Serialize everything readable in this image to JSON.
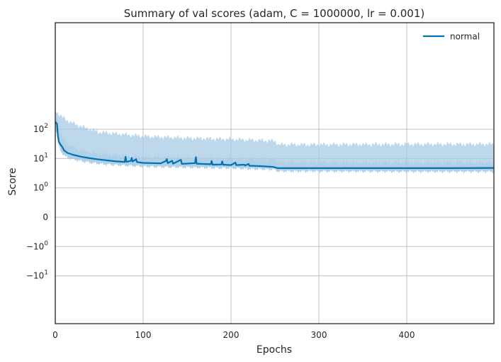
{
  "chart_data": {
    "type": "line",
    "title": "Summary of val scores (adam, C = 1000000, lr = 0.001)",
    "xlabel": "Epochs",
    "ylabel": "Score",
    "xlim": [
      0,
      500
    ],
    "y_scale": "symlog",
    "grid": true,
    "legend_position": "top-right",
    "x_ticks": [
      {
        "value": 0,
        "label": "0"
      },
      {
        "value": 100,
        "label": "100"
      },
      {
        "value": 200,
        "label": "200"
      },
      {
        "value": 300,
        "label": "300"
      },
      {
        "value": 400,
        "label": "400"
      }
    ],
    "y_ticks": [
      {
        "value": 100,
        "base": "10",
        "exp": "2"
      },
      {
        "value": 10,
        "base": "10",
        "exp": "1"
      },
      {
        "value": 1,
        "base": "10",
        "exp": "0"
      },
      {
        "value": 0,
        "base": "0",
        "exp": ""
      },
      {
        "value": -1,
        "base": "−10",
        "exp": "0"
      },
      {
        "value": -10,
        "base": "−10",
        "exp": "1"
      }
    ],
    "series": [
      {
        "name": "normal",
        "color": "#0072b2",
        "band_color": "#a6cbe3",
        "mean": [
          [
            0,
            180
          ],
          [
            2,
            150
          ],
          [
            3,
            60
          ],
          [
            4,
            38
          ],
          [
            6,
            30
          ],
          [
            8,
            25
          ],
          [
            10,
            19
          ],
          [
            14,
            15.5
          ],
          [
            20,
            13.5
          ],
          [
            30,
            11.5
          ],
          [
            40,
            10.2
          ],
          [
            50,
            9.3
          ],
          [
            60,
            8.6
          ],
          [
            70,
            8.0
          ],
          [
            79,
            7.7
          ],
          [
            80,
            11.5
          ],
          [
            81,
            7.8
          ],
          [
            86,
            8.3
          ],
          [
            87,
            10.5
          ],
          [
            88,
            7.9
          ],
          [
            92,
            9.5
          ],
          [
            93,
            7.6
          ],
          [
            100,
            7.1
          ],
          [
            110,
            7.0
          ],
          [
            120,
            6.9
          ],
          [
            126,
            8.3
          ],
          [
            127,
            9.6
          ],
          [
            128,
            7.0
          ],
          [
            133,
            8.4
          ],
          [
            134,
            6.7
          ],
          [
            143,
            9.1
          ],
          [
            144,
            6.6
          ],
          [
            159,
            7.0
          ],
          [
            160,
            11.2
          ],
          [
            161,
            6.7
          ],
          [
            177,
            6.4
          ],
          [
            178,
            8.3
          ],
          [
            179,
            6.2
          ],
          [
            189,
            6.3
          ],
          [
            190,
            8.0
          ],
          [
            191,
            6.2
          ],
          [
            200,
            6.0
          ],
          [
            205,
            7.3
          ],
          [
            206,
            6.0
          ],
          [
            215,
            6.2
          ],
          [
            216,
            5.8
          ],
          [
            220,
            6.6
          ],
          [
            221,
            5.7
          ],
          [
            230,
            5.6
          ],
          [
            240,
            5.4
          ],
          [
            248,
            5.2
          ],
          [
            253,
            4.7
          ],
          [
            300,
            4.7
          ],
          [
            400,
            4.7
          ],
          [
            450,
            4.7
          ],
          [
            499,
            4.8
          ]
        ],
        "lower": [
          [
            0,
            110
          ],
          [
            2,
            70
          ],
          [
            3,
            35
          ],
          [
            5,
            22
          ],
          [
            8,
            15
          ],
          [
            12,
            11.5
          ],
          [
            20,
            9.4
          ],
          [
            30,
            8.2
          ],
          [
            40,
            7.3
          ],
          [
            50,
            6.7
          ],
          [
            60,
            6.3
          ],
          [
            80,
            5.8
          ],
          [
            100,
            5.4
          ],
          [
            120,
            5.2
          ],
          [
            150,
            5.0
          ],
          [
            200,
            4.7
          ],
          [
            250,
            4.2
          ],
          [
            253,
            3.7
          ],
          [
            300,
            3.7
          ],
          [
            400,
            3.6
          ],
          [
            499,
            3.6
          ]
        ],
        "upper_inner": [
          [
            0,
            300
          ],
          [
            2,
            250
          ],
          [
            3,
            130
          ],
          [
            5,
            80
          ],
          [
            8,
            52
          ],
          [
            12,
            36
          ],
          [
            20,
            24
          ],
          [
            30,
            19
          ],
          [
            40,
            16.5
          ],
          [
            50,
            15
          ],
          [
            60,
            14
          ],
          [
            70,
            13
          ],
          [
            80,
            12.3
          ],
          [
            100,
            11.5
          ],
          [
            150,
            10.5
          ],
          [
            200,
            9.8
          ],
          [
            250,
            9.4
          ],
          [
            254,
            7.5
          ],
          [
            300,
            7.3
          ],
          [
            400,
            7.2
          ],
          [
            499,
            7.2
          ]
        ],
        "upper_outer": [
          [
            0,
            460
          ],
          [
            4,
            330
          ],
          [
            8,
            260
          ],
          [
            15,
            190
          ],
          [
            25,
            140
          ],
          [
            35,
            110
          ],
          [
            50,
            80
          ],
          [
            75,
            68
          ],
          [
            100,
            58
          ],
          [
            150,
            50
          ],
          [
            200,
            46
          ],
          [
            250,
            40
          ],
          [
            254,
            30
          ],
          [
            300,
            30
          ],
          [
            400,
            31
          ],
          [
            499,
            31
          ]
        ]
      }
    ]
  }
}
